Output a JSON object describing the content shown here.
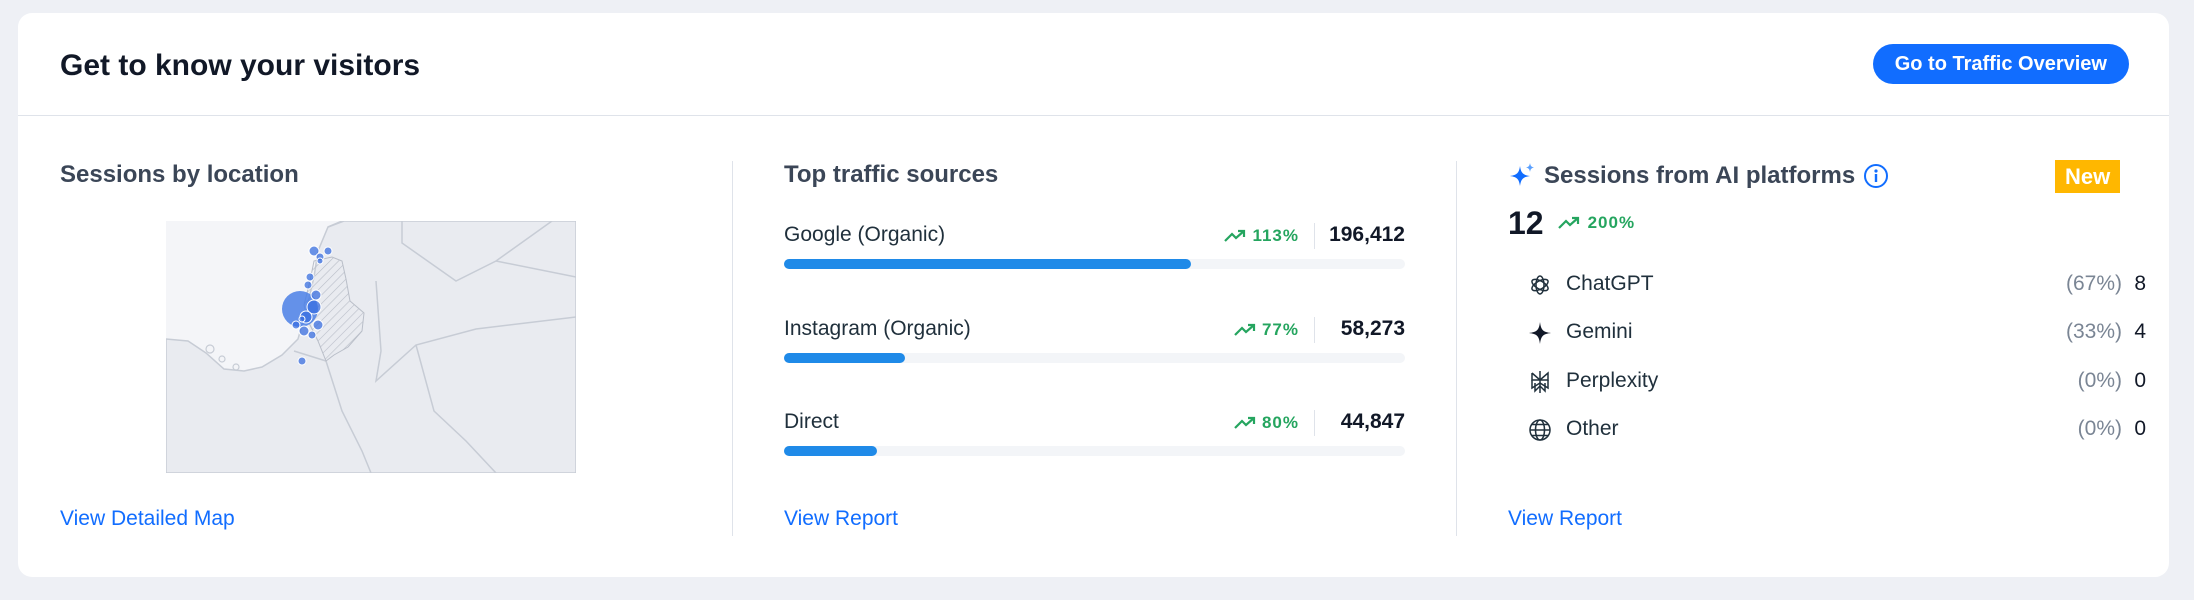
{
  "header": {
    "title": "Get to know your visitors",
    "button_label": "Go to Traffic Overview"
  },
  "location": {
    "title": "Sessions by location",
    "link": "View Detailed Map"
  },
  "sources": {
    "title": "Top traffic sources",
    "link": "View Report",
    "items": [
      {
        "name": "Google (Organic)",
        "trend": "113%",
        "value": "196,412",
        "share": 0.656
      },
      {
        "name": "Instagram (Organic)",
        "trend": "77%",
        "value": "58,273",
        "share": 0.195
      },
      {
        "name": "Direct",
        "trend": "80%",
        "value": "44,847",
        "share": 0.15
      }
    ]
  },
  "ai": {
    "title": "Sessions from AI platforms",
    "badge": "New",
    "total": "12",
    "total_trend": "200%",
    "link": "View Report",
    "items": [
      {
        "name": "ChatGPT",
        "pct": "(67%)",
        "count": "8",
        "icon": "chatgpt-icon"
      },
      {
        "name": "Gemini",
        "pct": "(33%)",
        "count": "4",
        "icon": "gemini-icon"
      },
      {
        "name": "Perplexity",
        "pct": "(0%)",
        "count": "0",
        "icon": "perplexity-icon"
      },
      {
        "name": "Other",
        "pct": "(0%)",
        "count": "0",
        "icon": "globe-icon"
      }
    ]
  },
  "colors": {
    "accent": "#116dff",
    "bar": "#1f8ae8",
    "trend_up": "#25a55f",
    "badge": "#ffb700"
  }
}
